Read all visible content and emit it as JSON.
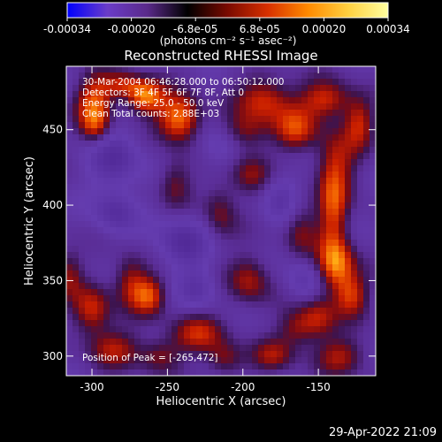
{
  "chart_data": {
    "type": "heatmap",
    "title": "Reconstructed RHESSI Image",
    "xlabel": "Heliocentric X (arcsec)",
    "ylabel": "Heliocentric Y (arcsec)",
    "xlim": [
      -317,
      -112
    ],
    "ylim": [
      287,
      492
    ],
    "x_ticks": [
      -300,
      -250,
      -200,
      -150
    ],
    "y_ticks": [
      300,
      350,
      400,
      450
    ],
    "colorbar": {
      "ticks": [
        "-0.00034",
        "-0.00020",
        "-6.8e-05",
        "6.8e-05",
        "0.00020",
        "0.00034"
      ],
      "range": [
        -0.00034,
        0.00034
      ],
      "unit_label": "(photons cm⁻² s⁻¹ asec⁻²)",
      "colors": [
        "#0000ff",
        "#6a3cc8",
        "#5a2a8a",
        "#000000",
        "#7a0a00",
        "#d83000",
        "#ff8a00",
        "#ffd040",
        "#ffffa0"
      ]
    },
    "annotations": [
      "30-Mar-2004 06:46:28.000 to 06:50:12.000",
      "Detectors: 3F 4F 5F 6F 7F 8F, Att 0",
      "Energy Range: 25.0 - 50.0 keV",
      "Clean     Total counts: 2.88E+03"
    ],
    "peak_text": "Position of Peak = [-265,472]",
    "peak": [
      -265,
      472
    ],
    "bright_regions": [
      {
        "x": -242,
        "y": 458,
        "sx": 10,
        "sy": 11,
        "amp": 1.0
      },
      {
        "x": -265,
        "y": 472,
        "sx": 9,
        "sy": 8,
        "amp": 0.95
      },
      {
        "x": -298,
        "y": 470,
        "sx": 9,
        "sy": 12,
        "amp": 0.75
      },
      {
        "x": -298,
        "y": 452,
        "sx": 7,
        "sy": 9,
        "amp": 0.6
      },
      {
        "x": -280,
        "y": 480,
        "sx": 9,
        "sy": 6,
        "amp": 0.55
      },
      {
        "x": -185,
        "y": 470,
        "sx": 13,
        "sy": 11,
        "amp": 0.7
      },
      {
        "x": -200,
        "y": 448,
        "sx": 12,
        "sy": 9,
        "amp": 0.55
      },
      {
        "x": -165,
        "y": 450,
        "sx": 10,
        "sy": 10,
        "amp": 0.65
      },
      {
        "x": -145,
        "y": 470,
        "sx": 12,
        "sy": 9,
        "amp": 0.7
      },
      {
        "x": -123,
        "y": 455,
        "sx": 7,
        "sy": 12,
        "amp": 0.6
      },
      {
        "x": -138,
        "y": 430,
        "sx": 10,
        "sy": 16,
        "amp": 0.5
      },
      {
        "x": -195,
        "y": 420,
        "sx": 10,
        "sy": 10,
        "amp": 0.5
      },
      {
        "x": -245,
        "y": 415,
        "sx": 8,
        "sy": 12,
        "amp": 0.45
      },
      {
        "x": -140,
        "y": 395,
        "sx": 7,
        "sy": 22,
        "amp": 0.7
      },
      {
        "x": -162,
        "y": 385,
        "sx": 8,
        "sy": 14,
        "amp": 0.45
      },
      {
        "x": -138,
        "y": 360,
        "sx": 9,
        "sy": 12,
        "amp": 0.85
      },
      {
        "x": -128,
        "y": 340,
        "sx": 8,
        "sy": 10,
        "amp": 0.65
      },
      {
        "x": -150,
        "y": 325,
        "sx": 9,
        "sy": 10,
        "amp": 0.6
      },
      {
        "x": -195,
        "y": 350,
        "sx": 10,
        "sy": 12,
        "amp": 0.55
      },
      {
        "x": -215,
        "y": 395,
        "sx": 8,
        "sy": 14,
        "amp": 0.45
      },
      {
        "x": -275,
        "y": 350,
        "sx": 8,
        "sy": 12,
        "amp": 0.55
      },
      {
        "x": -262,
        "y": 340,
        "sx": 8,
        "sy": 9,
        "amp": 0.75
      },
      {
        "x": -300,
        "y": 330,
        "sx": 9,
        "sy": 12,
        "amp": 0.7
      },
      {
        "x": -315,
        "y": 355,
        "sx": 6,
        "sy": 12,
        "amp": 0.45
      },
      {
        "x": -230,
        "y": 315,
        "sx": 13,
        "sy": 9,
        "amp": 0.6
      },
      {
        "x": -255,
        "y": 300,
        "sx": 10,
        "sy": 8,
        "amp": 0.5
      },
      {
        "x": -285,
        "y": 305,
        "sx": 12,
        "sy": 9,
        "amp": 0.55
      },
      {
        "x": -212,
        "y": 298,
        "sx": 9,
        "sy": 8,
        "amp": 0.5
      },
      {
        "x": -180,
        "y": 300,
        "sx": 10,
        "sy": 8,
        "amp": 0.5
      },
      {
        "x": -135,
        "y": 300,
        "sx": 12,
        "sy": 9,
        "amp": 0.55
      },
      {
        "x": -165,
        "y": 318,
        "sx": 9,
        "sy": 9,
        "amp": 0.45
      }
    ],
    "dim_regions": [
      {
        "x": -285,
        "y": 430,
        "sx": 12,
        "sy": 14,
        "amp": 0.55
      },
      {
        "x": -240,
        "y": 375,
        "sx": 12,
        "sy": 12,
        "amp": 0.6
      },
      {
        "x": -285,
        "y": 395,
        "sx": 10,
        "sy": 10,
        "amp": 0.5
      },
      {
        "x": -215,
        "y": 440,
        "sx": 10,
        "sy": 10,
        "amp": 0.45
      },
      {
        "x": -175,
        "y": 405,
        "sx": 9,
        "sy": 12,
        "amp": 0.45
      },
      {
        "x": -230,
        "y": 345,
        "sx": 9,
        "sy": 9,
        "amp": 0.4
      },
      {
        "x": -160,
        "y": 350,
        "sx": 8,
        "sy": 10,
        "amp": 0.4
      }
    ]
  },
  "footer": {
    "date": "29-Apr-2022 21:09"
  }
}
